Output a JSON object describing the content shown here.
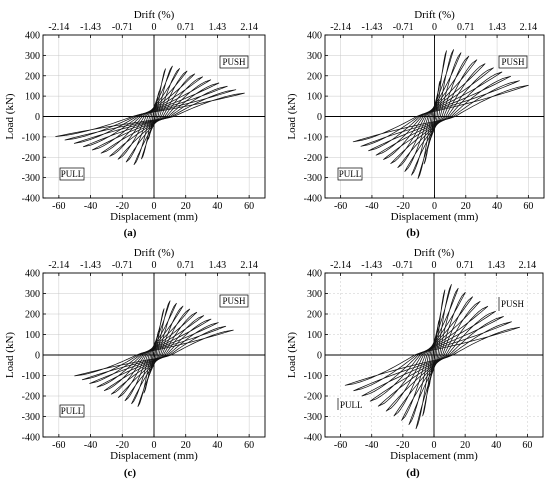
{
  "chart_data": [
    {
      "type": "line",
      "caption": "(a)",
      "xlabel": "Displacement (mm)",
      "ylabel": "Load (kN)",
      "x2label": "Drift (%)",
      "xlim": [
        -70,
        70
      ],
      "ylim": [
        -400,
        400
      ],
      "xticks": [
        "-60",
        "-40",
        "-20",
        "0",
        "20",
        "40",
        "60"
      ],
      "yticks": [
        "-400",
        "-300",
        "-200",
        "-100",
        "0",
        "100",
        "200",
        "300",
        "400"
      ],
      "x2ticks": [
        "-2.14",
        "-1.43",
        "-0.71",
        "0",
        "0.71",
        "1.43",
        "2.14"
      ],
      "annotations": [
        "PUSH",
        "PULL"
      ],
      "peak_push_load": 255,
      "peak_pull_load": -245,
      "max_push_disp": 57,
      "max_pull_disp": -62,
      "grid": true
    },
    {
      "type": "line",
      "caption": "(b)",
      "xlabel": "Displacement (mm)",
      "ylabel": "Load (kN)",
      "x2label": "Drift (%)",
      "xlim": [
        -70,
        70
      ],
      "ylim": [
        -400,
        400
      ],
      "xticks": [
        "-60",
        "-40",
        "-20",
        "0",
        "20",
        "40",
        "60"
      ],
      "yticks": [
        "-400",
        "-300",
        "-200",
        "-100",
        "0",
        "100",
        "200",
        "300",
        "400"
      ],
      "x2ticks": [
        "-2.14",
        "-1.43",
        "-0.71",
        "0",
        "0.71",
        "1.43",
        "2.14"
      ],
      "annotations": [
        "PUSH",
        "PULL"
      ],
      "peak_push_load": 340,
      "peak_pull_load": -310,
      "max_push_disp": 60,
      "max_pull_disp": -52,
      "grid": true
    },
    {
      "type": "line",
      "caption": "(c)",
      "xlabel": "Displacement (mm)",
      "ylabel": "Load (kN)",
      "x2label": "Drift (%)",
      "xlim": [
        -70,
        70
      ],
      "ylim": [
        -400,
        400
      ],
      "xticks": [
        "-60",
        "-40",
        "-20",
        "0",
        "20",
        "40",
        "60"
      ],
      "yticks": [
        "-400",
        "-300",
        "-200",
        "-100",
        "0",
        "100",
        "200",
        "300",
        "400"
      ],
      "x2ticks": [
        "-2.14",
        "-1.43",
        "-0.71",
        "0",
        "0.71",
        "1.43",
        "2.14"
      ],
      "annotations": [
        "PUSH",
        "PULL"
      ],
      "peak_push_load": 270,
      "peak_pull_load": -255,
      "max_push_disp": 50,
      "max_pull_disp": -50,
      "grid": true
    },
    {
      "type": "line",
      "caption": "(d)",
      "xlabel": "Displacement (mm)",
      "ylabel": "Load (kN)",
      "x2label": "Drift (%)",
      "xlim": [
        -70,
        70
      ],
      "ylim": [
        -400,
        400
      ],
      "xticks": [
        "-60",
        "-40",
        "-20",
        "0",
        "20",
        "40",
        "60"
      ],
      "yticks": [
        "-400",
        "-300",
        "-200",
        "-100",
        "0",
        "100",
        "200",
        "300",
        "400"
      ],
      "x2ticks": [
        "-2.14",
        "-1.43",
        "-0.71",
        "0",
        "0.71",
        "1.43",
        "2.14"
      ],
      "annotations": [
        "PUSH",
        "PULL"
      ],
      "peak_push_load": 355,
      "peak_pull_load": -370,
      "max_push_disp": 55,
      "max_pull_disp": -57,
      "grid": true
    }
  ]
}
